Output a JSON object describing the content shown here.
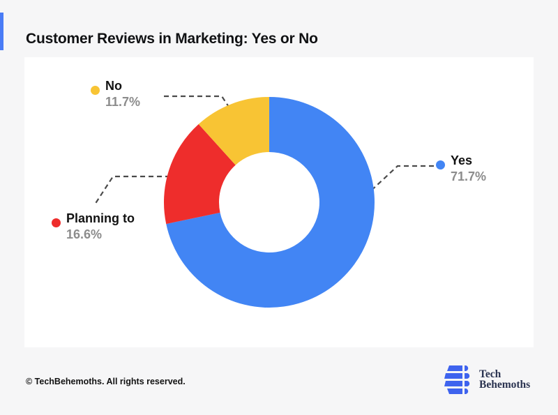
{
  "header": {
    "title": "Customer Reviews in Marketing: Yes or No"
  },
  "chart_data": {
    "type": "pie",
    "subtype": "donut",
    "title": "Customer Reviews in Marketing: Yes or No",
    "start_angle_deg": 0,
    "direction": "clockwise",
    "inner_radius_ratio": 0.48,
    "segments": [
      {
        "label": "Yes",
        "value": 71.7,
        "display": "71.7%",
        "color": "#4285F4"
      },
      {
        "label": "Planning to",
        "value": 16.6,
        "display": "16.6%",
        "color": "#EE2D2C"
      },
      {
        "label": "No",
        "value": 11.7,
        "display": "11.7%",
        "color": "#F8C434"
      }
    ],
    "legend_position": "around-chart"
  },
  "legend": {
    "yes": {
      "label": "Yes",
      "value": "71.7%",
      "color": "#4285F4"
    },
    "planning": {
      "label": "Planning to",
      "value": "16.6%",
      "color": "#EE2D2C"
    },
    "no": {
      "label": "No",
      "value": "11.7%",
      "color": "#F8C434"
    }
  },
  "footer": {
    "copyright": "© TechBehemoths. All rights reserved.",
    "logo_line1": "Tech",
    "logo_line2": "Behemoths"
  },
  "colors": {
    "background": "#F6F6F7",
    "panel": "#FFFFFF",
    "accent_bar": "#4A7CF6",
    "title_text": "#101113",
    "label_text": "#121212",
    "percent_text": "#8C8C8C",
    "connector": "#4A4A4A",
    "logo_blue": "#3E63EE",
    "logo_text": "#2A3350"
  }
}
